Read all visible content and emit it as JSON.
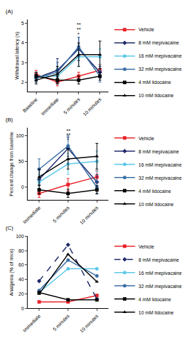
{
  "chart_data": [
    {
      "type": "line",
      "title": "(A)",
      "y_label": "Withdrawal latency (s)",
      "grid": false,
      "legend": "right",
      "categories": [
        "Baseline",
        "Immediate",
        "5 minutes",
        "10 minutes"
      ],
      "ylim": [
        1.5,
        5.2
      ],
      "yticks": [
        2,
        3,
        4,
        5
      ],
      "series": [
        {
          "name": "Vehicle",
          "color": "#e8242a",
          "marker": "square",
          "values": [
            2.4,
            2.0,
            2.3,
            2.6
          ],
          "errors": [
            0.2,
            0.2,
            0.2,
            0.3
          ]
        },
        {
          "name": "8 mM mepivacaine",
          "color": "#1f2a6b",
          "marker": "diamond",
          "values": [
            2.2,
            2.6,
            3.7,
            2.5
          ],
          "errors": [
            0.2,
            0.6,
            0.6,
            0.3
          ]
        },
        {
          "name": "16 mM mepivacaine",
          "color": "#5bc8e8",
          "marker": "circle",
          "values": [
            2.3,
            2.3,
            3.3,
            3.3
          ],
          "errors": [
            0.2,
            0.4,
            0.5,
            0.4
          ]
        },
        {
          "name": "32 mM mepivacaine",
          "color": "#3a6ea5",
          "marker": "circle",
          "values": [
            2.2,
            2.5,
            3.8,
            2.3
          ],
          "errors": [
            0.2,
            0.5,
            0.5,
            0.3
          ]
        },
        {
          "name": "4 mM lidocaine",
          "color": "#000000",
          "marker": "square",
          "values": [
            2.3,
            2.1,
            2.1,
            2.3
          ],
          "errors": [
            0.2,
            0.2,
            0.2,
            0.2
          ]
        },
        {
          "name": "10 mM lidocaine",
          "color": "#000000",
          "marker": "triangle-up",
          "values": [
            2.1,
            2.4,
            3.4,
            3.4
          ],
          "errors": [
            0.2,
            0.4,
            0.6,
            0.7
          ]
        }
      ],
      "annotations": [
        {
          "x": "5 minutes",
          "y": 4.95,
          "text": "**"
        },
        {
          "x": "5 minutes",
          "y": 4.7,
          "text": "**"
        },
        {
          "x": "5 minutes",
          "y": 4.45,
          "text": "*"
        }
      ]
    },
    {
      "type": "line",
      "title": "(B)",
      "y_label": "Percent change from baseline",
      "grid": false,
      "legend": "right",
      "categories": [
        "Immediate",
        "5 minutes",
        "10 minutes"
      ],
      "ylim": [
        -25,
        115
      ],
      "yticks": [
        0,
        50,
        100
      ],
      "series": [
        {
          "name": "Vehicle",
          "color": "#e8242a",
          "marker": "square",
          "values": [
            -12,
            5,
            20
          ],
          "errors": [
            8,
            12,
            12
          ]
        },
        {
          "name": "8 mM mepivacaine",
          "color": "#1f2a6b",
          "marker": "diamond",
          "values": [
            15,
            75,
            10
          ],
          "errors": [
            20,
            22,
            15
          ]
        },
        {
          "name": "16 mM mepivacaine",
          "color": "#5bc8e8",
          "marker": "circle",
          "values": [
            10,
            45,
            50
          ],
          "errors": [
            15,
            20,
            20
          ]
        },
        {
          "name": "32 mM mepivacaine",
          "color": "#3a6ea5",
          "marker": "circle",
          "values": [
            35,
            80,
            0
          ],
          "errors": [
            20,
            20,
            12
          ]
        },
        {
          "name": "4 mM lidocaine",
          "color": "#000000",
          "marker": "square",
          "values": [
            -5,
            -12,
            -5
          ],
          "errors": [
            8,
            8,
            8
          ]
        },
        {
          "name": "10 mM lidocaine",
          "color": "#000000",
          "marker": "triangle-up",
          "values": [
            20,
            55,
            60
          ],
          "errors": [
            15,
            20,
            25
          ]
        }
      ],
      "annotations": [
        {
          "x": "5 minutes",
          "y": 110,
          "text": "**"
        },
        {
          "x": "5 minutes",
          "y": 101,
          "text": "**"
        },
        {
          "x": "5 minutes",
          "y": 92,
          "text": "*"
        }
      ]
    },
    {
      "type": "line",
      "title": "(C)",
      "y_label": "Analgesia (% of mice)",
      "grid": false,
      "legend": "right",
      "categories": [
        "Immediate",
        "5 minutes",
        "10 minutes"
      ],
      "ylim": [
        0,
        100
      ],
      "yticks": [
        0,
        20,
        40,
        60,
        80,
        100
      ],
      "series": [
        {
          "name": "Vehicle",
          "color": "#e8242a",
          "marker": "square",
          "values": [
            9,
            9,
            18
          ]
        },
        {
          "name": "8 mM mepivacaine",
          "color": "#1f2a6b",
          "marker": "diamond",
          "line_style": "dash",
          "values": [
            38,
            88,
            13
          ]
        },
        {
          "name": "16 mM mepivacaine",
          "color": "#5bc8e8",
          "marker": "circle",
          "values": [
            22,
            55,
            55
          ]
        },
        {
          "name": "32 mM mepivacaine",
          "color": "#3a6ea5",
          "marker": "circle",
          "values": [
            25,
            67,
            45
          ]
        },
        {
          "name": "4 mM lidocaine",
          "color": "#000000",
          "marker": "square",
          "values": [
            22,
            12,
            12
          ]
        },
        {
          "name": "10 mM lidocaine",
          "color": "#000000",
          "marker": "triangle-up",
          "values": [
            20,
            75,
            37
          ]
        }
      ]
    }
  ]
}
